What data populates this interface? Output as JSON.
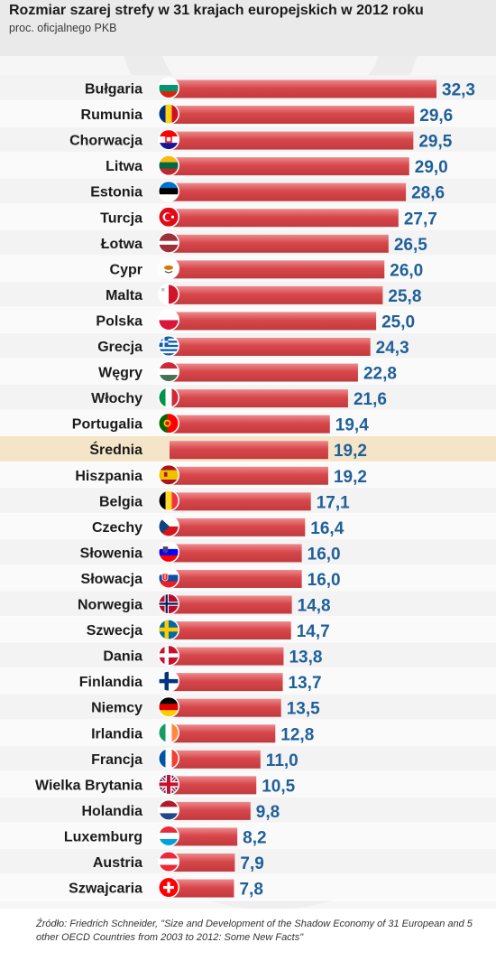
{
  "title": "Rozmiar szarej strefy w 31 krajach europejskich w 2012 roku",
  "subtitle": "proc. oficjalnego PKB",
  "source": "Źródło: Friedrich Schneider, \"Size and Development of the Shadow Economy of 31 European and 5 other OECD Countries from 2003 to 2012: Some New Facts\"",
  "colors": {
    "bar": "#d7474b",
    "bar_light": "#ec8a8c",
    "value": "#1f5f9a",
    "label": "#1b1b1b",
    "highlight": "#f4e5c8"
  },
  "chart_data": {
    "type": "bar",
    "orientation": "horizontal",
    "title": "Rozmiar szarej strefy w 31 krajach europejskich w 2012 roku",
    "subtitle": "proc. oficjalnego PKB",
    "xlim": [
      0,
      32.3
    ],
    "grid": false,
    "legend": "none",
    "categories": [
      "Bułgaria",
      "Rumunia",
      "Chorwacja",
      "Litwa",
      "Estonia",
      "Turcja",
      "Łotwa",
      "Cypr",
      "Malta",
      "Polska",
      "Grecja",
      "Węgry",
      "Włochy",
      "Portugalia",
      "Średnia",
      "Hiszpania",
      "Belgia",
      "Czechy",
      "Słowenia",
      "Słowacja",
      "Norwegia",
      "Szwecja",
      "Dania",
      "Finlandia",
      "Niemcy",
      "Irlandia",
      "Francja",
      "Wielka Brytania",
      "Holandia",
      "Luxemburg",
      "Austria",
      "Szwajcaria"
    ],
    "values": [
      32.3,
      29.6,
      29.5,
      29.0,
      28.6,
      27.7,
      26.5,
      26.0,
      25.8,
      25.0,
      24.3,
      22.8,
      21.6,
      19.4,
      19.2,
      19.2,
      17.1,
      16.4,
      16.0,
      16.0,
      14.8,
      14.7,
      13.8,
      13.7,
      13.5,
      12.8,
      11.0,
      10.5,
      9.8,
      8.2,
      7.9,
      7.8
    ],
    "value_labels": [
      "32,3",
      "29,6",
      "29,5",
      "29,0",
      "28,6",
      "27,7",
      "26,5",
      "26,0",
      "25,8",
      "25,0",
      "24,3",
      "22,8",
      "21,6",
      "19,4",
      "19,2",
      "19,2",
      "17,1",
      "16,4",
      "16,0",
      "16,0",
      "14,8",
      "14,7",
      "13,8",
      "13,7",
      "13,5",
      "12,8",
      "11,0",
      "10,5",
      "9,8",
      "8,2",
      "7,9",
      "7,8"
    ],
    "flags": [
      "flag-bg",
      "flag-ro",
      "flag-hr",
      "flag-lt",
      "flag-ee",
      "flag-tr",
      "flag-lv",
      "flag-cy",
      "flag-mt",
      "flag-pl",
      "flag-gr",
      "flag-hu",
      "flag-it",
      "flag-pt",
      "none",
      "flag-es",
      "flag-be",
      "flag-cz",
      "flag-si",
      "flag-sk",
      "flag-no",
      "flag-se",
      "flag-dk",
      "flag-fi",
      "flag-de",
      "flag-ie",
      "flag-fr",
      "flag-gb",
      "flag-nl",
      "flag-lu",
      "flag-at",
      "flag-ch"
    ],
    "highlight_category": "Średnia"
  }
}
